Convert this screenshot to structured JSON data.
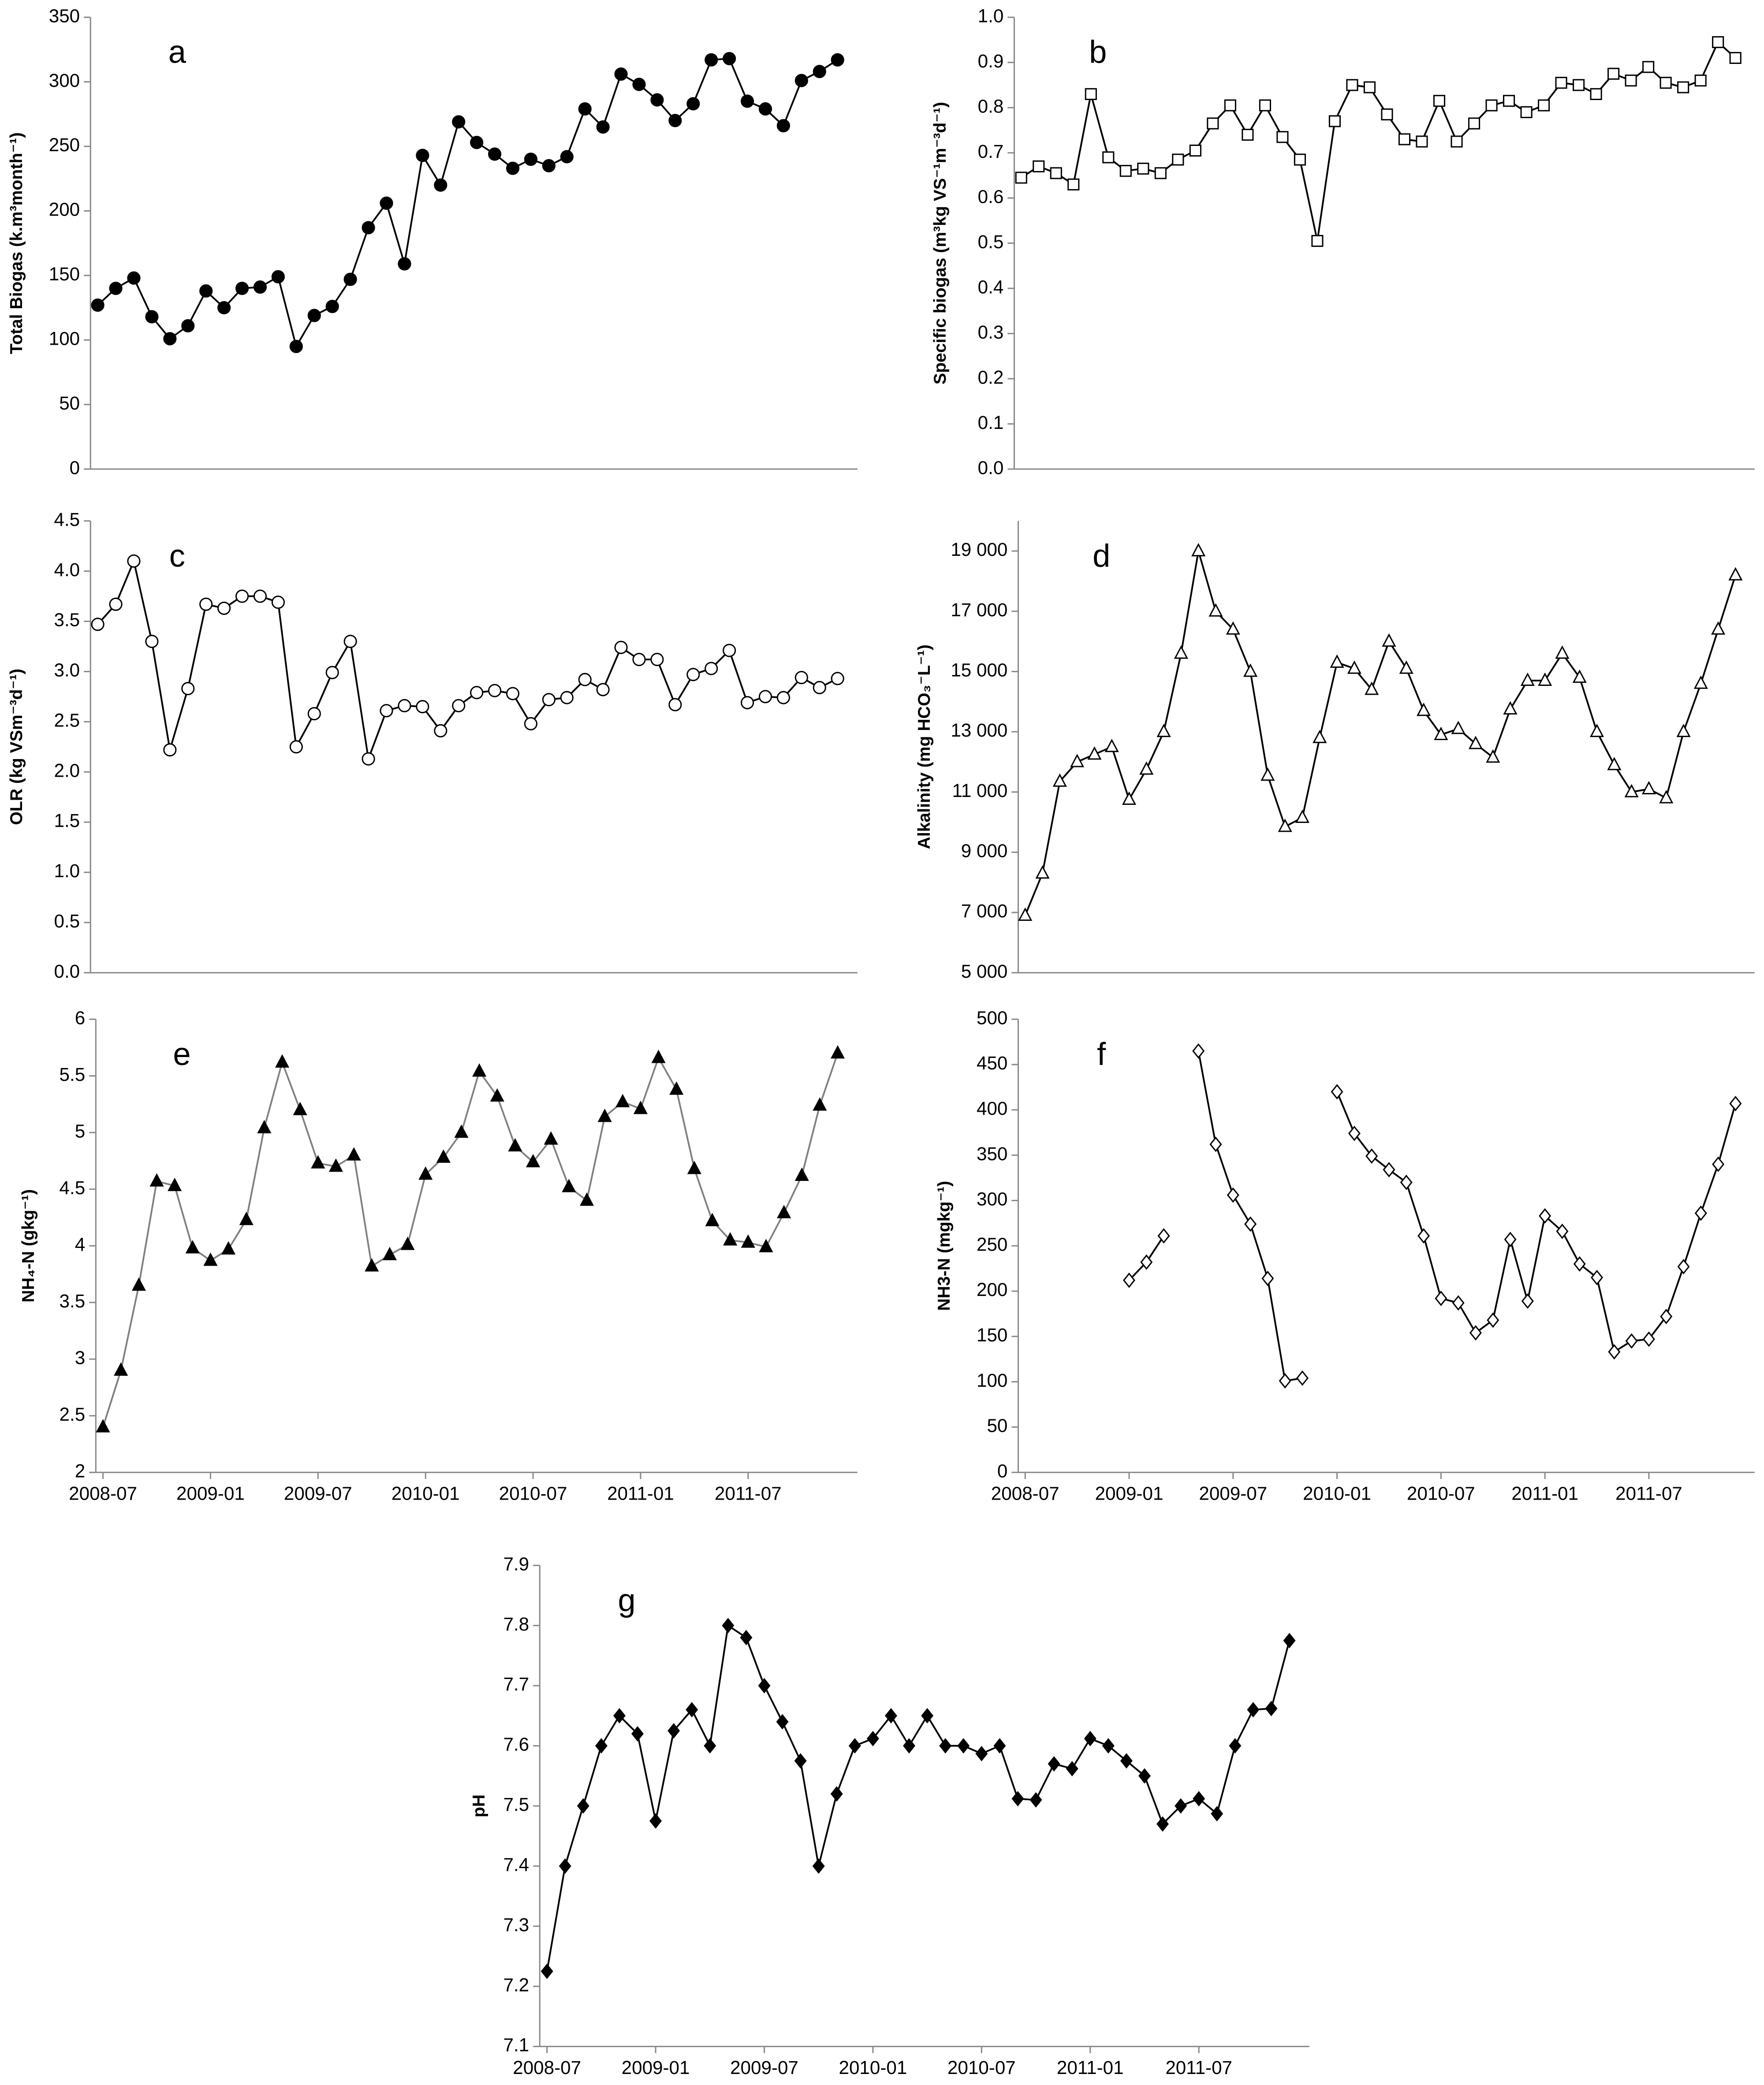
{
  "chart_data": [
    {
      "type": "line",
      "label": "a",
      "ylabel": "Total Biogas (k.m³month⁻¹)",
      "marker": "circle",
      "marker_fill": "#000000",
      "color": "#000000",
      "values": [
        127,
        140,
        148,
        118,
        101,
        111,
        138,
        125,
        140,
        141,
        149,
        95,
        119,
        126,
        147,
        187,
        206,
        159,
        243,
        220,
        269,
        253,
        244,
        233,
        240,
        235,
        242,
        279,
        265,
        306,
        298,
        286,
        270,
        283,
        317,
        318,
        285,
        279,
        266,
        301,
        308,
        317
      ],
      "ylim": [
        0,
        350
      ],
      "yticks": [
        0,
        50,
        100,
        150,
        200,
        250,
        300,
        350
      ]
    },
    {
      "type": "line",
      "label": "b",
      "ylabel": "Specific biogas (m³kg VS⁻¹m⁻³d⁻¹)",
      "marker": "square",
      "marker_fill": "#ffffff",
      "color": "#000000",
      "values": [
        0.645,
        0.67,
        0.655,
        0.63,
        0.83,
        0.69,
        0.66,
        0.665,
        0.655,
        0.685,
        0.705,
        0.765,
        0.805,
        0.74,
        0.805,
        0.735,
        0.685,
        0.505,
        0.77,
        0.85,
        0.845,
        0.785,
        0.73,
        0.725,
        0.815,
        0.725,
        0.765,
        0.805,
        0.815,
        0.79,
        0.805,
        0.855,
        0.85,
        0.83,
        0.875,
        0.86,
        0.89,
        0.855,
        0.845,
        0.86,
        0.945,
        0.91
      ],
      "ylim": [
        0,
        1
      ],
      "yticks": [
        {
          "value": 0,
          "label": "0.0"
        },
        0.1,
        0.2,
        0.3,
        0.4,
        0.5,
        0.6,
        0.7,
        0.8,
        0.9,
        {
          "value": 1,
          "label": "1.0"
        }
      ]
    },
    {
      "type": "line",
      "label": "c",
      "ylabel": "OLR (kg VSm⁻³d⁻¹)",
      "marker": "circle",
      "marker_fill": "#ffffff",
      "color": "#000000",
      "values": [
        3.47,
        3.67,
        4.1,
        3.3,
        2.22,
        2.83,
        3.67,
        3.63,
        3.75,
        3.75,
        3.69,
        2.25,
        2.58,
        2.99,
        3.3,
        2.13,
        2.61,
        2.66,
        2.65,
        2.41,
        2.66,
        2.79,
        2.81,
        2.78,
        2.48,
        2.72,
        2.74,
        2.92,
        2.82,
        3.24,
        3.12,
        3.12,
        2.67,
        2.97,
        3.03,
        3.21,
        2.69,
        2.75,
        2.74,
        2.94,
        2.84,
        2.93
      ],
      "ylim": [
        0,
        4.5
      ],
      "yticks": [
        {
          "value": 0,
          "label": "0.0"
        },
        0.5,
        {
          "value": 1,
          "label": "1.0"
        },
        1.5,
        {
          "value": 2,
          "label": "2.0"
        },
        2.5,
        {
          "value": 3,
          "label": "3.0"
        },
        3.5,
        {
          "value": 4,
          "label": "4.0"
        },
        4.5
      ]
    },
    {
      "type": "line",
      "label": "d",
      "ylabel": "Alkalinity (mg HCO₃⁻L⁻¹)",
      "marker": "triangle",
      "marker_fill": "#ffffff",
      "color": "#000000",
      "values": [
        6900,
        8300,
        11350,
        12000,
        12250,
        12500,
        10750,
        11750,
        13000,
        15600,
        19000,
        17000,
        16400,
        15000,
        11550,
        9850,
        10150,
        12800,
        15300,
        15100,
        14400,
        16000,
        15100,
        13700,
        12900,
        13100,
        12600,
        12150,
        13750,
        14700,
        14700,
        15600,
        14800,
        13000,
        11900,
        11000,
        11100,
        10800,
        13000,
        14600,
        16400,
        18200
      ],
      "ylim": [
        5000,
        20000
      ],
      "yticks": [
        {
          "value": 5000,
          "label": "5 000"
        },
        {
          "value": 7000,
          "label": "7 000"
        },
        {
          "value": 9000,
          "label": "9 000"
        },
        {
          "value": 11000,
          "label": "11 000"
        },
        {
          "value": 13000,
          "label": "13 000"
        },
        {
          "value": 15000,
          "label": "15 000"
        },
        {
          "value": 17000,
          "label": "17 000"
        },
        {
          "value": 19000,
          "label": "19 000"
        }
      ]
    },
    {
      "type": "line",
      "label": "e",
      "ylabel": "NH₄-N (gkg⁻¹)",
      "marker": "triangle",
      "marker_fill": "#000000",
      "color": "#808080",
      "categories": [
        "2008-07",
        null,
        null,
        null,
        null,
        null,
        "2009-01",
        null,
        null,
        null,
        null,
        null,
        "2009-07",
        null,
        null,
        null,
        null,
        null,
        "2010-01",
        null,
        null,
        null,
        null,
        null,
        "2010-07",
        null,
        null,
        null,
        null,
        null,
        "2011-01",
        null,
        null,
        null,
        null,
        null,
        "2011-07",
        null,
        null,
        null,
        null,
        null
      ],
      "values": [
        2.4,
        2.9,
        3.65,
        4.57,
        4.53,
        3.98,
        3.87,
        3.97,
        4.23,
        5.04,
        5.62,
        5.2,
        4.73,
        4.7,
        4.8,
        3.82,
        3.92,
        4.01,
        4.63,
        4.78,
        5.0,
        5.54,
        5.32,
        4.88,
        4.74,
        4.94,
        4.52,
        4.4,
        5.14,
        5.27,
        5.21,
        5.66,
        5.38,
        4.68,
        4.22,
        4.05,
        4.03,
        3.99,
        4.29,
        4.62,
        5.24,
        5.7
      ],
      "ylim": [
        2,
        6
      ],
      "yticks": [
        2,
        2.5,
        3,
        3.5,
        4,
        4.5,
        5,
        5.5,
        6
      ]
    },
    {
      "type": "line",
      "label": "f",
      "ylabel": "NH3-N (mgkg⁻¹)",
      "marker": "diamond",
      "marker_fill": "#ffffff",
      "color": "#000000",
      "categories": [
        "2008-07",
        null,
        null,
        null,
        null,
        null,
        "2009-01",
        null,
        null,
        null,
        null,
        null,
        "2009-07",
        null,
        null,
        null,
        null,
        null,
        "2010-01",
        null,
        null,
        null,
        null,
        null,
        "2010-07",
        null,
        null,
        null,
        null,
        null,
        "2011-01",
        null,
        null,
        null,
        null,
        null,
        "2011-07",
        null,
        null,
        null,
        null,
        null
      ],
      "values": [
        null,
        null,
        null,
        null,
        null,
        null,
        212,
        232,
        261,
        null,
        465,
        362,
        306,
        274,
        214,
        101,
        104,
        null,
        420,
        374,
        349,
        334,
        320,
        261,
        192,
        187,
        154,
        168,
        257,
        189,
        283,
        266,
        230,
        215,
        133,
        145,
        147,
        172,
        227,
        286,
        340,
        407
      ],
      "ylim": [
        0,
        500
      ],
      "yticks": [
        0,
        50,
        100,
        150,
        200,
        250,
        300,
        350,
        400,
        450,
        500
      ]
    },
    {
      "type": "line",
      "label": "g",
      "ylabel": "pH",
      "marker": "diamond",
      "marker_fill": "#000000",
      "color": "#000000",
      "categories": [
        "2008-07",
        null,
        null,
        null,
        null,
        null,
        "2009-01",
        null,
        null,
        null,
        null,
        null,
        "2009-07",
        null,
        null,
        null,
        null,
        null,
        "2010-01",
        null,
        null,
        null,
        null,
        null,
        "2010-07",
        null,
        null,
        null,
        null,
        null,
        "2011-01",
        null,
        null,
        null,
        null,
        null,
        "2011-07",
        null,
        null,
        null,
        null,
        null
      ],
      "values": [
        7.225,
        7.4,
        7.5,
        7.6,
        7.65,
        7.62,
        7.475,
        7.625,
        7.66,
        7.6,
        7.8,
        7.78,
        7.7,
        7.64,
        7.575,
        7.4,
        7.52,
        7.6,
        7.612,
        7.65,
        7.6,
        7.65,
        7.6,
        7.6,
        7.587,
        7.6,
        7.512,
        7.51,
        7.57,
        7.562,
        7.612,
        7.6,
        7.575,
        7.55,
        7.47,
        7.5,
        7.512,
        7.487,
        7.6,
        7.66,
        7.662,
        7.775
      ],
      "ylim": [
        7.1,
        7.9
      ],
      "yticks": [
        7.1,
        7.2,
        7.3,
        7.4,
        7.5,
        7.6,
        7.7,
        7.8,
        7.9
      ]
    }
  ]
}
